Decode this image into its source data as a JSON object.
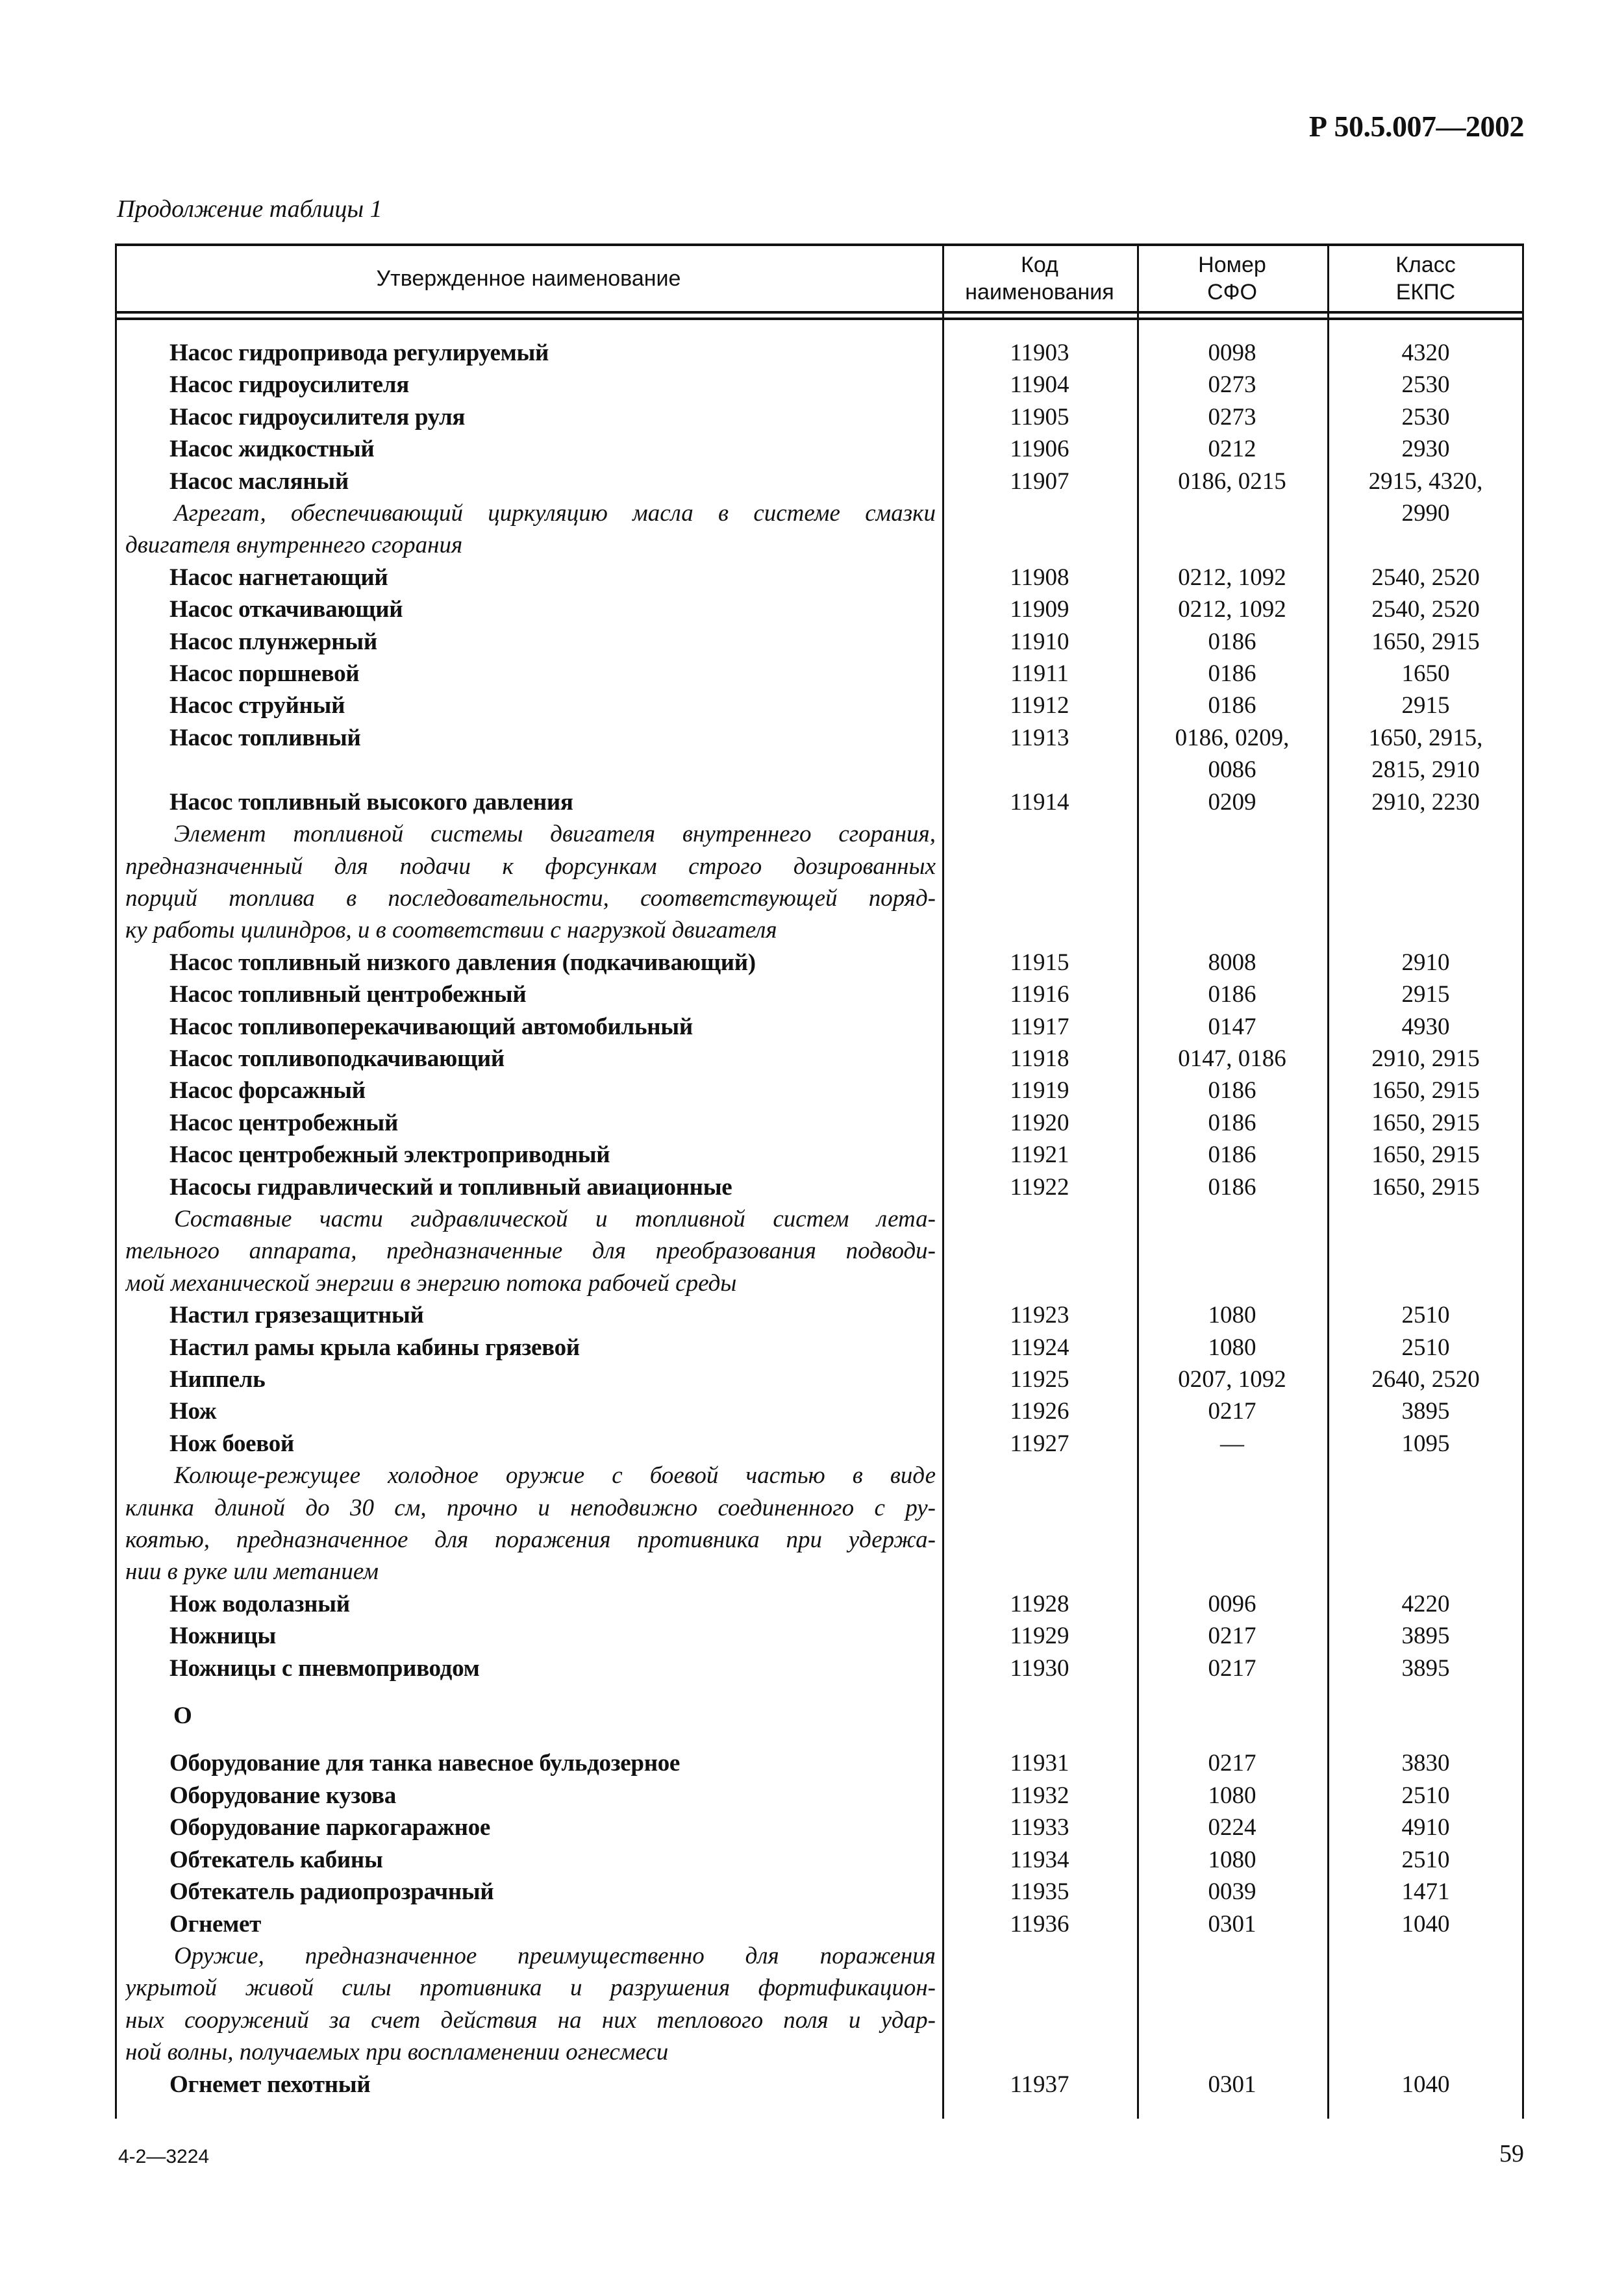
{
  "header": {
    "doc_code": "Р 50.5.007—2002",
    "caption": "Продолжение таблицы 1"
  },
  "table": {
    "columns": [
      "Утвержденное наименование",
      "Код наименования",
      "Номер СФО",
      "Класс ЕКПС"
    ],
    "columns_split": {
      "code": [
        "Код",
        "наименования"
      ],
      "sfo": [
        "Номер",
        "СФО"
      ],
      "ekps": [
        "Класс",
        "ЕКПС"
      ]
    },
    "rows": [
      {
        "name": "Насос гидропривода регулируемый",
        "code": "11903",
        "sfo": [
          "0098"
        ],
        "ekps": [
          "4320"
        ]
      },
      {
        "name": "Насос гидроусилителя",
        "code": "11904",
        "sfo": [
          "0273"
        ],
        "ekps": [
          "2530"
        ]
      },
      {
        "name": "Насос гидроусилителя руля",
        "code": "11905",
        "sfo": [
          "0273"
        ],
        "ekps": [
          "2530"
        ]
      },
      {
        "name": "Насос жидкостный",
        "code": "11906",
        "sfo": [
          "0212"
        ],
        "ekps": [
          "2930"
        ]
      },
      {
        "name": "Насос масляный",
        "code": "11907",
        "sfo": [
          "0186, 0215"
        ],
        "ekps": [
          "2915, 4320,",
          "2990"
        ],
        "desc": [
          "Агрегат, обеспечивающий циркуляцию масла в системе смазки",
          "двигателя внутреннего сгорания"
        ]
      },
      {
        "name": "Насос нагнетающий",
        "code": "11908",
        "sfo": [
          "0212, 1092"
        ],
        "ekps": [
          "2540, 2520"
        ]
      },
      {
        "name": "Насос откачивающий",
        "code": "11909",
        "sfo": [
          "0212, 1092"
        ],
        "ekps": [
          "2540, 2520"
        ]
      },
      {
        "name": "Насос плунжерный",
        "code": "11910",
        "sfo": [
          "0186"
        ],
        "ekps": [
          "1650, 2915"
        ]
      },
      {
        "name": "Насос поршневой",
        "code": "11911",
        "sfo": [
          "0186"
        ],
        "ekps": [
          "1650"
        ]
      },
      {
        "name": "Насос струйный",
        "code": "11912",
        "sfo": [
          "0186"
        ],
        "ekps": [
          "2915"
        ]
      },
      {
        "name": "Насос топливный",
        "code": "11913",
        "sfo": [
          "0186, 0209,",
          "0086"
        ],
        "ekps": [
          "1650, 2915,",
          "2815, 2910"
        ]
      },
      {
        "name": "Насос топливный высокого давления",
        "code": "11914",
        "sfo": [
          "0209"
        ],
        "ekps": [
          "2910, 2230"
        ],
        "desc": [
          "Элемент топливной системы двигателя внутреннего сгорания,",
          "предназначенный для подачи к форсункам строго дозированных",
          "порций топлива в последовательности, соответствующей поряд-",
          "ку работы цилиндров, и в соответствии с нагрузкой двигателя"
        ]
      },
      {
        "name": "Насос топливный низкого давления (подкачивающий)",
        "code": "11915",
        "sfo": [
          "8008"
        ],
        "ekps": [
          "2910"
        ]
      },
      {
        "name": "Насос топливный центробежный",
        "code": "11916",
        "sfo": [
          "0186"
        ],
        "ekps": [
          "2915"
        ]
      },
      {
        "name": "Насос топливоперекачивающий автомобильный",
        "code": "11917",
        "sfo": [
          "0147"
        ],
        "ekps": [
          "4930"
        ]
      },
      {
        "name": "Насос топливоподкачивающий",
        "code": "11918",
        "sfo": [
          "0147, 0186"
        ],
        "ekps": [
          "2910, 2915"
        ]
      },
      {
        "name": "Насос форсажный",
        "code": "11919",
        "sfo": [
          "0186"
        ],
        "ekps": [
          "1650, 2915"
        ]
      },
      {
        "name": "Насос центробежный",
        "code": "11920",
        "sfo": [
          "0186"
        ],
        "ekps": [
          "1650, 2915"
        ]
      },
      {
        "name": "Насос центробежный электроприводный",
        "code": "11921",
        "sfo": [
          "0186"
        ],
        "ekps": [
          "1650, 2915"
        ]
      },
      {
        "name": "Насосы гидравлический и топливный авиационные",
        "code": "11922",
        "sfo": [
          "0186"
        ],
        "ekps": [
          "1650, 2915"
        ],
        "desc": [
          "Составные части гидравлической и топливной систем лета-",
          "тельного аппарата, предназначенные для преобразования подводи-",
          "мой механической энергии в энергию потока рабочей среды"
        ]
      },
      {
        "name": "Настил грязезащитный",
        "code": "11923",
        "sfo": [
          "1080"
        ],
        "ekps": [
          "2510"
        ]
      },
      {
        "name": "Настил рамы крыла кабины грязевой",
        "code": "11924",
        "sfo": [
          "1080"
        ],
        "ekps": [
          "2510"
        ]
      },
      {
        "name": "Ниппель",
        "code": "11925",
        "sfo": [
          "0207, 1092"
        ],
        "ekps": [
          "2640, 2520"
        ]
      },
      {
        "name": "Нож",
        "code": "11926",
        "sfo": [
          "0217"
        ],
        "ekps": [
          "3895"
        ]
      },
      {
        "name": "Нож боевой",
        "code": "11927",
        "sfo": [
          "—"
        ],
        "ekps": [
          "1095"
        ],
        "desc": [
          "Колюще-режущее холодное оружие с боевой частью в виде",
          "клинка длиной до 30 см, прочно и неподвижно соединенного с ру-",
          "коятью, предназначенное для поражения противника при удержа-",
          "нии в руке или метанием"
        ]
      },
      {
        "name": "Нож водолазный",
        "code": "11928",
        "sfo": [
          "0096"
        ],
        "ekps": [
          "4220"
        ]
      },
      {
        "name": "Ножницы",
        "code": "11929",
        "sfo": [
          "0217"
        ],
        "ekps": [
          "3895"
        ]
      },
      {
        "name": "Ножницы с пневмоприводом",
        "code": "11930",
        "sfo": [
          "0217"
        ],
        "ekps": [
          "3895"
        ]
      },
      {
        "section": "О"
      },
      {
        "name": "Оборудование для танка навесное бульдозерное",
        "code": "11931",
        "sfo": [
          "0217"
        ],
        "ekps": [
          "3830"
        ]
      },
      {
        "name": "Оборудование кузова",
        "code": "11932",
        "sfo": [
          "1080"
        ],
        "ekps": [
          "2510"
        ]
      },
      {
        "name": "Оборудование паркогаражное",
        "code": "11933",
        "sfo": [
          "0224"
        ],
        "ekps": [
          "4910"
        ]
      },
      {
        "name": "Обтекатель кабины",
        "code": "11934",
        "sfo": [
          "1080"
        ],
        "ekps": [
          "2510"
        ]
      },
      {
        "name": "Обтекатель радиопрозрачный",
        "code": "11935",
        "sfo": [
          "0039"
        ],
        "ekps": [
          "1471"
        ]
      },
      {
        "name": "Огнемет",
        "code": "11936",
        "sfo": [
          "0301"
        ],
        "ekps": [
          "1040"
        ],
        "desc": [
          "Оружие, предназначенное преимущественно для поражения",
          "укрытой живой силы противника и разрушения фортификацион-",
          "ных сооружений за счет действия на них теплового поля и удар-",
          "ной волны, получаемых при воспламенении огнесмеси"
        ]
      },
      {
        "name": "Огнемет пехотный",
        "code": "11937",
        "sfo": [
          "0301"
        ],
        "ekps": [
          "1040"
        ]
      }
    ]
  },
  "footer": {
    "print_code": "4-2—3224",
    "page_number": "59"
  }
}
